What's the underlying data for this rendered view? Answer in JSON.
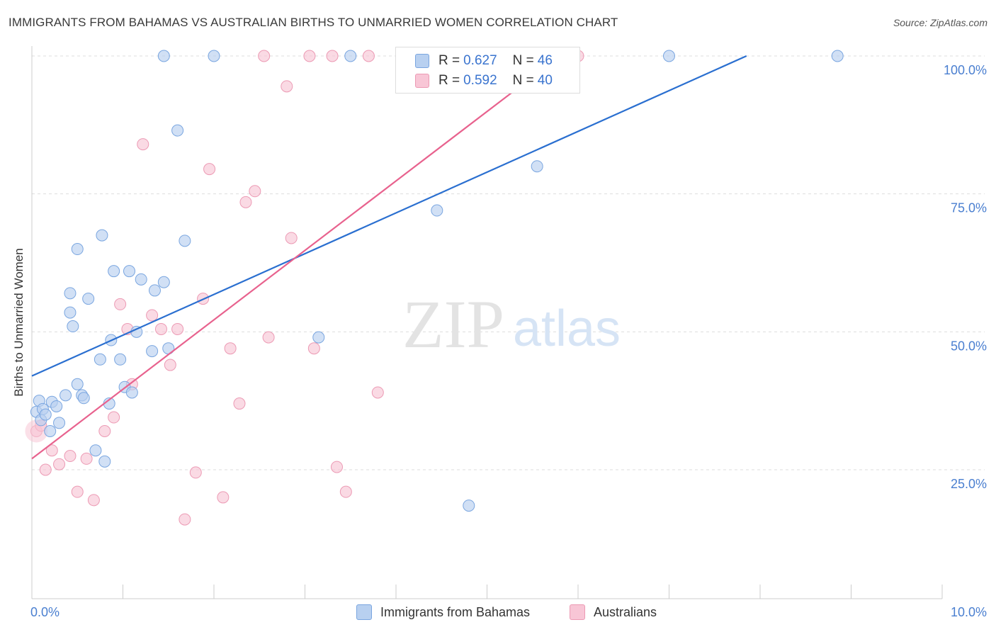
{
  "title": "IMMIGRANTS FROM BAHAMAS VS AUSTRALIAN BIRTHS TO UNMARRIED WOMEN CORRELATION CHART",
  "source": "Source: ZipAtlas.com",
  "watermark": {
    "zip": "ZIP",
    "atlas": "atlas"
  },
  "colors": {
    "blue_fill": "#b8d0f0",
    "blue_stroke": "#7aa6e0",
    "blue_line": "#2a6fd0",
    "pink_fill": "#f8c6d6",
    "pink_stroke": "#ec9ab4",
    "pink_line": "#e8628e",
    "tick_text": "#4a7fd0",
    "grid": "#dddddd"
  },
  "legend": {
    "rows": [
      {
        "r_label": "R = ",
        "r_value": "0.627",
        "n_label": "N = ",
        "n_value": "46"
      },
      {
        "r_label": "R = ",
        "r_value": "0.592",
        "n_label": "N = ",
        "n_value": "40"
      }
    ]
  },
  "bottom_legend": {
    "series1": "Immigrants from Bahamas",
    "series2": "Australians"
  },
  "chart_data": {
    "type": "scatter",
    "xlabel": "",
    "ylabel": "Births to Unmarried Women",
    "xlim": [
      0,
      10
    ],
    "ylim": [
      0,
      103
    ],
    "x_tick_labels": [
      {
        "value": 0,
        "label": "0.0%"
      },
      {
        "value": 10,
        "label": "10.0%"
      }
    ],
    "y_tick_labels": [
      {
        "value": 25,
        "label": "25.0%"
      },
      {
        "value": 50,
        "label": "50.0%"
      },
      {
        "value": 75,
        "label": "75.0%"
      },
      {
        "value": 100,
        "label": "100.0%"
      }
    ],
    "series": [
      {
        "name": "Immigrants from Bahamas",
        "R": 0.627,
        "N": 46,
        "trend": {
          "x0": 0,
          "y0": 42,
          "x1": 7.85,
          "y1": 100
        },
        "points": [
          [
            0.05,
            35.5
          ],
          [
            0.08,
            37.5
          ],
          [
            0.1,
            34
          ],
          [
            0.12,
            36
          ],
          [
            0.15,
            35
          ],
          [
            0.2,
            32
          ],
          [
            0.22,
            37.3
          ],
          [
            0.27,
            36.5
          ],
          [
            0.3,
            33.5
          ],
          [
            0.37,
            38.5
          ],
          [
            0.42,
            57
          ],
          [
            0.42,
            53.5
          ],
          [
            0.45,
            51
          ],
          [
            0.5,
            40.5
          ],
          [
            0.5,
            65
          ],
          [
            0.55,
            38.5
          ],
          [
            0.57,
            38
          ],
          [
            0.62,
            56
          ],
          [
            0.7,
            28.5
          ],
          [
            0.75,
            45
          ],
          [
            0.77,
            67.5
          ],
          [
            0.8,
            26.5
          ],
          [
            0.85,
            37
          ],
          [
            0.87,
            48.5
          ],
          [
            0.9,
            61
          ],
          [
            0.97,
            45
          ],
          [
            1.02,
            40
          ],
          [
            1.07,
            61
          ],
          [
            1.1,
            39
          ],
          [
            1.15,
            50
          ],
          [
            1.2,
            59.5
          ],
          [
            1.32,
            46.5
          ],
          [
            1.35,
            57.5
          ],
          [
            1.45,
            59
          ],
          [
            1.5,
            47
          ],
          [
            1.6,
            86.5
          ],
          [
            1.68,
            66.5
          ],
          [
            2.0,
            100
          ],
          [
            3.5,
            100
          ],
          [
            1.45,
            100
          ],
          [
            3.15,
            49
          ],
          [
            4.45,
            72
          ],
          [
            4.8,
            18.5
          ],
          [
            5.55,
            80
          ],
          [
            7.0,
            100
          ],
          [
            8.85,
            100
          ]
        ]
      },
      {
        "name": "Australians",
        "R": 0.592,
        "N": 40,
        "trend": {
          "x0": 0,
          "y0": 27,
          "x1": 5.8,
          "y1": 100
        },
        "points": [
          [
            0.05,
            32
          ],
          [
            0.1,
            33
          ],
          [
            0.15,
            25
          ],
          [
            0.22,
            28.5
          ],
          [
            0.3,
            26
          ],
          [
            0.42,
            27.5
          ],
          [
            0.5,
            21
          ],
          [
            0.6,
            27
          ],
          [
            0.68,
            19.5
          ],
          [
            0.8,
            32
          ],
          [
            0.9,
            34.5
          ],
          [
            0.97,
            55
          ],
          [
            1.05,
            50.5
          ],
          [
            1.1,
            40.5
          ],
          [
            1.22,
            84
          ],
          [
            1.32,
            53
          ],
          [
            1.42,
            50.5
          ],
          [
            1.52,
            44
          ],
          [
            1.6,
            50.5
          ],
          [
            1.68,
            16
          ],
          [
            1.8,
            24.5
          ],
          [
            1.88,
            56
          ],
          [
            1.95,
            79.5
          ],
          [
            2.1,
            20
          ],
          [
            2.18,
            47
          ],
          [
            2.28,
            37
          ],
          [
            2.35,
            73.5
          ],
          [
            2.45,
            75.5
          ],
          [
            2.55,
            100
          ],
          [
            2.6,
            49
          ],
          [
            2.8,
            94.5
          ],
          [
            2.85,
            67
          ],
          [
            3.05,
            100
          ],
          [
            3.1,
            47
          ],
          [
            3.3,
            100
          ],
          [
            3.35,
            25.5
          ],
          [
            3.45,
            21
          ],
          [
            3.7,
            100
          ],
          [
            3.8,
            39
          ],
          [
            6.0,
            100
          ]
        ]
      }
    ]
  }
}
